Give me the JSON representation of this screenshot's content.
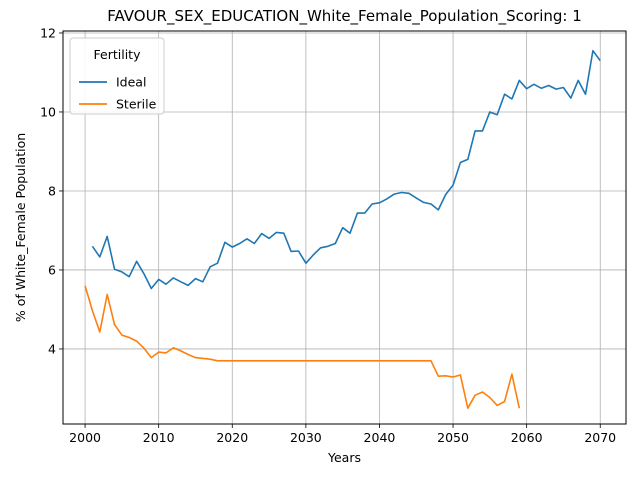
{
  "chart_data": {
    "type": "line",
    "title": "FAVOUR_SEX_EDUCATION_White_Female_Population_Scoring: 1",
    "xlabel": "Years",
    "ylabel": "% of White_Female Population",
    "xlim": [
      1997,
      2073.5
    ],
    "ylim": [
      2.1,
      12.05
    ],
    "xticks": [
      2000,
      2010,
      2020,
      2030,
      2040,
      2050,
      2060,
      2070
    ],
    "yticks": [
      4,
      6,
      8,
      10,
      12
    ],
    "grid": true,
    "legend": {
      "title": "Fertility",
      "position": "top-left"
    },
    "series": [
      {
        "name": "Ideal",
        "color": "#1f77b4",
        "x": [
          2001,
          2002,
          2003,
          2004,
          2005,
          2006,
          2007,
          2008,
          2009,
          2010,
          2011,
          2012,
          2013,
          2014,
          2015,
          2016,
          2017,
          2018,
          2019,
          2020,
          2021,
          2022,
          2023,
          2024,
          2025,
          2026,
          2027,
          2028,
          2029,
          2030,
          2031,
          2032,
          2033,
          2034,
          2035,
          2036,
          2037,
          2038,
          2039,
          2040,
          2041,
          2042,
          2043,
          2044,
          2045,
          2046,
          2047,
          2048,
          2049,
          2050,
          2051,
          2052,
          2053,
          2054,
          2055,
          2056,
          2057,
          2058,
          2059,
          2060,
          2061,
          2062,
          2063,
          2064,
          2065,
          2066,
          2067,
          2068,
          2069,
          2070
        ],
        "y": [
          6.6,
          6.33,
          6.85,
          6.02,
          5.95,
          5.83,
          6.22,
          5.9,
          5.53,
          5.76,
          5.64,
          5.8,
          5.7,
          5.61,
          5.78,
          5.7,
          6.08,
          6.17,
          6.7,
          6.58,
          6.67,
          6.79,
          6.67,
          6.92,
          6.8,
          6.95,
          6.93,
          6.47,
          6.48,
          6.17,
          6.38,
          6.56,
          6.6,
          6.67,
          7.07,
          6.93,
          7.44,
          7.44,
          7.67,
          7.7,
          7.8,
          7.92,
          7.96,
          7.94,
          7.82,
          7.71,
          7.67,
          7.52,
          7.91,
          8.15,
          8.72,
          8.8,
          9.52,
          9.52,
          10.0,
          9.93,
          10.45,
          10.33,
          10.8,
          10.59,
          10.7,
          10.6,
          10.67,
          10.58,
          10.62,
          10.35,
          10.8,
          10.45,
          11.55,
          11.3
        ]
      },
      {
        "name": "Sterile",
        "color": "#ff7f0e",
        "x": [
          2000,
          2001,
          2002,
          2003,
          2004,
          2005,
          2006,
          2007,
          2008,
          2009,
          2010,
          2011,
          2012,
          2013,
          2014,
          2015,
          2016,
          2017,
          2018,
          2019,
          2020,
          2021,
          2022,
          2023,
          2024,
          2025,
          2026,
          2027,
          2028,
          2029,
          2030,
          2031,
          2032,
          2033,
          2034,
          2035,
          2036,
          2037,
          2038,
          2039,
          2040,
          2041,
          2042,
          2043,
          2044,
          2045,
          2046,
          2047,
          2048,
          2049,
          2050,
          2051,
          2052,
          2053,
          2054,
          2055,
          2056,
          2057,
          2058,
          2059
        ],
        "y": [
          5.6,
          4.97,
          4.43,
          5.38,
          4.62,
          4.35,
          4.29,
          4.2,
          4.02,
          3.78,
          3.92,
          3.9,
          4.03,
          3.95,
          3.86,
          3.78,
          3.76,
          3.74,
          3.7,
          3.7,
          3.7,
          3.7,
          3.7,
          3.7,
          3.7,
          3.7,
          3.7,
          3.7,
          3.7,
          3.7,
          3.7,
          3.7,
          3.7,
          3.7,
          3.7,
          3.7,
          3.7,
          3.7,
          3.7,
          3.7,
          3.7,
          3.7,
          3.7,
          3.7,
          3.7,
          3.7,
          3.7,
          3.7,
          3.31,
          3.32,
          3.29,
          3.34,
          2.5,
          2.83,
          2.91,
          2.77,
          2.57,
          2.67,
          3.36,
          2.5
        ]
      }
    ]
  }
}
